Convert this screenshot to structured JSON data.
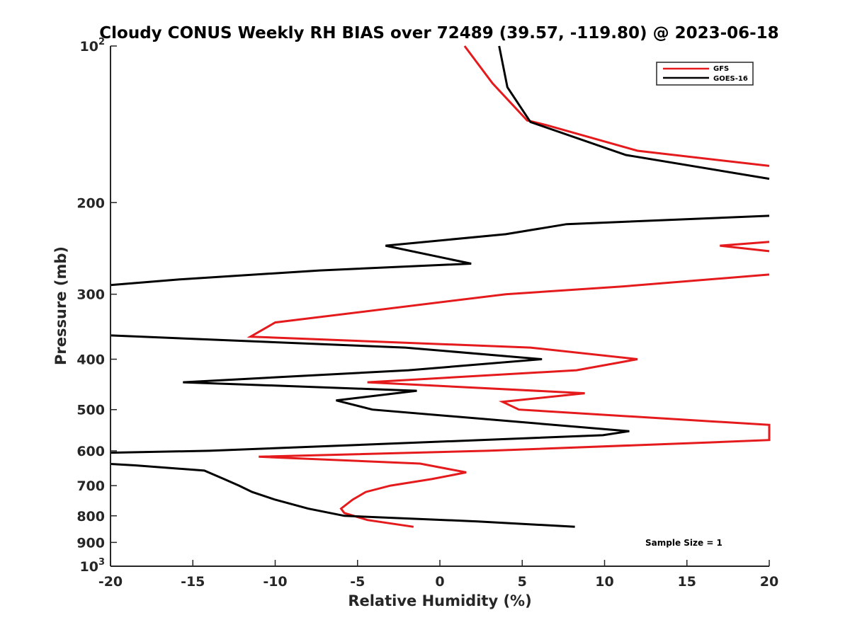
{
  "chart_data": {
    "type": "line",
    "title": "Cloudy CONUS Weekly RH BIAS over 72489 (39.57, -119.80) @ 2023-06-18",
    "xlabel": "Relative Humidity (%)",
    "ylabel": "Pressure (mb)",
    "xlim": [
      -20,
      20
    ],
    "ylim": [
      1000,
      100
    ],
    "y_scale": "log",
    "y_reversed": true,
    "x_ticks": [
      "-20",
      "-15",
      "-10",
      "-5",
      "0",
      "5",
      "10",
      "15",
      "20"
    ],
    "x_tick_values": [
      -20,
      -15,
      -10,
      -5,
      0,
      5,
      10,
      15,
      20
    ],
    "y_ticks": [
      {
        "value": 100,
        "base": "10",
        "exp": "2"
      },
      {
        "value": 200,
        "label": "200"
      },
      {
        "value": 300,
        "label": "300"
      },
      {
        "value": 400,
        "label": "400"
      },
      {
        "value": 500,
        "label": "500"
      },
      {
        "value": 600,
        "label": "600"
      },
      {
        "value": 700,
        "label": "700"
      },
      {
        "value": 800,
        "label": "800"
      },
      {
        "value": 900,
        "label": "900"
      },
      {
        "value": 1000,
        "base": "10",
        "exp": "3"
      }
    ],
    "grid": false,
    "legend_position": "top-right",
    "annotation": "Sample Size = 1",
    "series": [
      {
        "name": "GFS",
        "color": "#e41a1c",
        "points": [
          [
            1.5,
            100
          ],
          [
            3.2,
            118
          ],
          [
            5.3,
            139
          ],
          [
            6.5,
            142
          ],
          [
            12.0,
            159
          ],
          [
            20.0,
            170
          ],
          null,
          [
            20.0,
            238
          ],
          [
            17.0,
            242
          ],
          [
            20.0,
            248
          ],
          null,
          [
            20.0,
            275
          ],
          [
            11.0,
            290
          ],
          [
            4.0,
            300
          ],
          [
            -10.0,
            340
          ],
          [
            -11.5,
            362
          ],
          [
            5.5,
            380
          ],
          [
            12.0,
            400
          ],
          [
            8.3,
            420
          ],
          [
            -4.4,
            443
          ],
          [
            8.8,
            465
          ],
          [
            3.8,
            483
          ],
          [
            4.8,
            500
          ],
          [
            20.0,
            535
          ],
          [
            20.0,
            572
          ],
          [
            16.5,
            578
          ],
          [
            2.9,
            600
          ],
          [
            -11.0,
            616
          ],
          [
            -1.2,
            635
          ],
          [
            1.6,
            660
          ],
          [
            -0.5,
            680
          ],
          [
            -3.0,
            700
          ],
          [
            -4.5,
            720
          ],
          [
            -5.3,
            745
          ],
          [
            -6.0,
            775
          ],
          [
            -5.8,
            790
          ],
          [
            -4.4,
            815
          ],
          [
            -1.6,
            840
          ]
        ]
      },
      {
        "name": "GOES-16",
        "color": "#000000",
        "points": [
          [
            3.6,
            100
          ],
          [
            4.1,
            120
          ],
          [
            5.5,
            140
          ],
          [
            11.3,
            162
          ],
          [
            20.0,
            180
          ],
          null,
          [
            20.0,
            212
          ],
          [
            7.7,
            220
          ],
          [
            4.0,
            230
          ],
          [
            -3.3,
            242
          ],
          [
            1.9,
            262
          ],
          [
            -7.3,
            270
          ],
          [
            -15.8,
            281
          ],
          [
            -20.0,
            288
          ],
          null,
          [
            -20.0,
            360
          ],
          [
            -2.1,
            380
          ],
          [
            6.2,
            400
          ],
          [
            -1.9,
            420
          ],
          [
            -15.6,
            443
          ],
          [
            -1.4,
            460
          ],
          [
            -6.3,
            480
          ],
          [
            -4.1,
            500
          ],
          [
            11.5,
            550
          ],
          [
            9.9,
            560
          ],
          [
            -14.0,
            600
          ],
          [
            -20.0,
            605
          ],
          null,
          [
            -20.0,
            636
          ],
          [
            -18.5,
            640
          ],
          [
            -14.3,
            655
          ],
          [
            -13.1,
            680
          ],
          [
            -12.2,
            700
          ],
          [
            -11.4,
            720
          ],
          [
            -10.0,
            745
          ],
          [
            -8.0,
            775
          ],
          [
            -5.8,
            800
          ],
          [
            2.3,
            820
          ],
          [
            8.2,
            840
          ]
        ]
      }
    ]
  }
}
